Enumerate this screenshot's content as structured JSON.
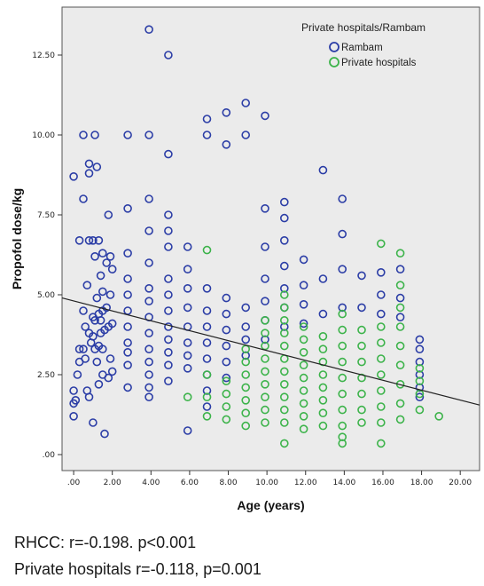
{
  "chart_data": {
    "type": "scatter",
    "xlabel": "Age (years)",
    "ylabel": "Propofol dose/kg",
    "xlim": [
      -0.6,
      21.0
    ],
    "ylim": [
      -0.5,
      14.0
    ],
    "x_ticks": [
      0,
      2,
      4,
      6,
      8,
      10,
      12,
      14,
      16,
      18,
      20
    ],
    "x_tick_labels": [
      ".00",
      "2.00",
      "4.00",
      "6.00",
      "8.00",
      "10.00",
      "12.00",
      "14.00",
      "16.00",
      "18.00",
      "20.00"
    ],
    "y_ticks": [
      0,
      2.5,
      5,
      7.5,
      10,
      12.5
    ],
    "y_tick_labels": [
      ".00",
      "2.50",
      "5.00",
      "7.50",
      "10.00",
      "12.50"
    ],
    "grid": false,
    "plot_background": "#ebebeb",
    "legend": {
      "title": "Private hospitals/Rambam",
      "placement": "top-right"
    },
    "fit_line": {
      "x": [
        -0.6,
        21.0
      ],
      "y": [
        4.9,
        1.55
      ],
      "color": "#222222"
    },
    "series": [
      {
        "name": "Rambam",
        "color": "#2b3da6",
        "points": [
          [
            0,
            8.7
          ],
          [
            0,
            2.0
          ],
          [
            0,
            1.6
          ],
          [
            0,
            1.2
          ],
          [
            0.1,
            1.7
          ],
          [
            0.2,
            2.5
          ],
          [
            0.3,
            6.7
          ],
          [
            0.3,
            3.3
          ],
          [
            0.3,
            2.9
          ],
          [
            0.5,
            10.0
          ],
          [
            0.5,
            8.0
          ],
          [
            0.5,
            4.5
          ],
          [
            0.5,
            3.3
          ],
          [
            0.6,
            4.0
          ],
          [
            0.6,
            3.0
          ],
          [
            0.7,
            5.3
          ],
          [
            0.7,
            2.0
          ],
          [
            0.8,
            9.1
          ],
          [
            0.8,
            8.8
          ],
          [
            0.8,
            6.7
          ],
          [
            0.8,
            3.8
          ],
          [
            0.8,
            1.8
          ],
          [
            0.9,
            3.5
          ],
          [
            1.0,
            6.7
          ],
          [
            1.0,
            4.3
          ],
          [
            1.0,
            3.7
          ],
          [
            1.0,
            1.0
          ],
          [
            1.1,
            10.0
          ],
          [
            1.1,
            6.2
          ],
          [
            1.1,
            4.2
          ],
          [
            1.1,
            3.3
          ],
          [
            1.2,
            9.0
          ],
          [
            1.2,
            4.9
          ],
          [
            1.2,
            2.9
          ],
          [
            1.3,
            6.7
          ],
          [
            1.3,
            4.4
          ],
          [
            1.3,
            3.4
          ],
          [
            1.3,
            2.2
          ],
          [
            1.4,
            5.6
          ],
          [
            1.4,
            4.2
          ],
          [
            1.4,
            3.8
          ],
          [
            1.5,
            6.3
          ],
          [
            1.5,
            5.1
          ],
          [
            1.5,
            4.5
          ],
          [
            1.5,
            3.3
          ],
          [
            1.5,
            2.5
          ],
          [
            1.6,
            3.9
          ],
          [
            1.6,
            0.65
          ],
          [
            1.7,
            6.0
          ],
          [
            1.7,
            4.6
          ],
          [
            1.8,
            7.5
          ],
          [
            1.8,
            4.0
          ],
          [
            1.8,
            2.4
          ],
          [
            1.9,
            6.2
          ],
          [
            1.9,
            5.0
          ],
          [
            1.9,
            3.0
          ],
          [
            2.0,
            5.8
          ],
          [
            2.0,
            4.1
          ],
          [
            2.0,
            2.6
          ],
          [
            2.8,
            10.0
          ],
          [
            2.8,
            7.7
          ],
          [
            2.8,
            6.3
          ],
          [
            2.8,
            5.5
          ],
          [
            2.8,
            5.0
          ],
          [
            2.8,
            4.5
          ],
          [
            2.8,
            4.0
          ],
          [
            2.8,
            3.5
          ],
          [
            2.8,
            3.2
          ],
          [
            2.8,
            2.8
          ],
          [
            2.8,
            2.1
          ],
          [
            3.9,
            13.3
          ],
          [
            3.9,
            10.0
          ],
          [
            3.9,
            8.0
          ],
          [
            3.9,
            7.0
          ],
          [
            3.9,
            6.0
          ],
          [
            3.9,
            5.2
          ],
          [
            3.9,
            4.8
          ],
          [
            3.9,
            4.3
          ],
          [
            3.9,
            3.8
          ],
          [
            3.9,
            3.3
          ],
          [
            3.9,
            2.9
          ],
          [
            3.9,
            2.5
          ],
          [
            3.9,
            2.1
          ],
          [
            3.9,
            1.8
          ],
          [
            4.9,
            12.5
          ],
          [
            4.9,
            9.4
          ],
          [
            4.9,
            7.5
          ],
          [
            4.9,
            7.0
          ],
          [
            4.9,
            6.5
          ],
          [
            4.9,
            5.5
          ],
          [
            4.9,
            5.0
          ],
          [
            4.9,
            4.5
          ],
          [
            4.9,
            4.0
          ],
          [
            4.9,
            3.6
          ],
          [
            4.9,
            3.2
          ],
          [
            4.9,
            2.8
          ],
          [
            4.9,
            2.3
          ],
          [
            5.9,
            6.5
          ],
          [
            5.9,
            5.8
          ],
          [
            5.9,
            5.2
          ],
          [
            5.9,
            4.6
          ],
          [
            5.9,
            4.0
          ],
          [
            5.9,
            3.5
          ],
          [
            5.9,
            3.1
          ],
          [
            5.9,
            2.7
          ],
          [
            5.9,
            0.75
          ],
          [
            6.9,
            10.5
          ],
          [
            6.9,
            10.0
          ],
          [
            6.9,
            5.2
          ],
          [
            6.9,
            4.5
          ],
          [
            6.9,
            4.0
          ],
          [
            6.9,
            3.5
          ],
          [
            6.9,
            3.0
          ],
          [
            6.9,
            2.5
          ],
          [
            6.9,
            2.0
          ],
          [
            6.9,
            1.5
          ],
          [
            7.9,
            10.7
          ],
          [
            7.9,
            9.7
          ],
          [
            7.9,
            4.9
          ],
          [
            7.9,
            4.4
          ],
          [
            7.9,
            3.9
          ],
          [
            7.9,
            3.4
          ],
          [
            7.9,
            2.9
          ],
          [
            7.9,
            2.4
          ],
          [
            8.9,
            11.0
          ],
          [
            8.9,
            10.0
          ],
          [
            8.9,
            4.6
          ],
          [
            8.9,
            4.0
          ],
          [
            8.9,
            3.6
          ],
          [
            8.9,
            3.1
          ],
          [
            9.9,
            10.6
          ],
          [
            9.9,
            7.7
          ],
          [
            9.9,
            6.5
          ],
          [
            9.9,
            5.5
          ],
          [
            9.9,
            4.8
          ],
          [
            9.9,
            4.2
          ],
          [
            9.9,
            3.6
          ],
          [
            10.9,
            7.9
          ],
          [
            10.9,
            7.4
          ],
          [
            10.9,
            6.7
          ],
          [
            10.9,
            5.9
          ],
          [
            10.9,
            5.2
          ],
          [
            10.9,
            4.6
          ],
          [
            10.9,
            4.0
          ],
          [
            11.9,
            6.1
          ],
          [
            11.9,
            5.3
          ],
          [
            11.9,
            4.7
          ],
          [
            11.9,
            4.1
          ],
          [
            12.9,
            8.9
          ],
          [
            12.9,
            5.5
          ],
          [
            12.9,
            4.4
          ],
          [
            13.9,
            8.0
          ],
          [
            13.9,
            6.9
          ],
          [
            13.9,
            5.8
          ],
          [
            13.9,
            4.6
          ],
          [
            14.9,
            5.6
          ],
          [
            14.9,
            4.6
          ],
          [
            15.9,
            5.7
          ],
          [
            15.9,
            5.0
          ],
          [
            15.9,
            4.4
          ],
          [
            16.9,
            5.8
          ],
          [
            16.9,
            4.9
          ],
          [
            16.9,
            4.3
          ],
          [
            17.9,
            3.6
          ],
          [
            17.9,
            3.3
          ],
          [
            17.9,
            2.9
          ],
          [
            17.9,
            2.5
          ],
          [
            17.9,
            2.1
          ],
          [
            17.9,
            1.8
          ]
        ]
      },
      {
        "name": "Private hospitals",
        "color": "#3cb34a",
        "points": [
          [
            5.9,
            1.8
          ],
          [
            6.9,
            6.4
          ],
          [
            6.9,
            2.5
          ],
          [
            6.9,
            1.8
          ],
          [
            6.9,
            1.2
          ],
          [
            7.9,
            2.3
          ],
          [
            7.9,
            1.9
          ],
          [
            7.9,
            1.5
          ],
          [
            7.9,
            1.1
          ],
          [
            8.9,
            3.3
          ],
          [
            8.9,
            2.9
          ],
          [
            8.9,
            2.5
          ],
          [
            8.9,
            2.1
          ],
          [
            8.9,
            1.7
          ],
          [
            8.9,
            1.3
          ],
          [
            8.9,
            0.9
          ],
          [
            9.9,
            4.2
          ],
          [
            9.9,
            3.8
          ],
          [
            9.9,
            3.4
          ],
          [
            9.9,
            3.0
          ],
          [
            9.9,
            2.6
          ],
          [
            9.9,
            2.2
          ],
          [
            9.9,
            1.8
          ],
          [
            9.9,
            1.4
          ],
          [
            9.9,
            1.0
          ],
          [
            10.9,
            5.0
          ],
          [
            10.9,
            4.6
          ],
          [
            10.9,
            4.2
          ],
          [
            10.9,
            3.8
          ],
          [
            10.9,
            3.4
          ],
          [
            10.9,
            3.0
          ],
          [
            10.9,
            2.6
          ],
          [
            10.9,
            2.2
          ],
          [
            10.9,
            1.8
          ],
          [
            10.9,
            1.4
          ],
          [
            10.9,
            1.0
          ],
          [
            10.9,
            0.35
          ],
          [
            11.9,
            4.0
          ],
          [
            11.9,
            3.6
          ],
          [
            11.9,
            3.2
          ],
          [
            11.9,
            2.8
          ],
          [
            11.9,
            2.4
          ],
          [
            11.9,
            2.0
          ],
          [
            11.9,
            1.6
          ],
          [
            11.9,
            1.2
          ],
          [
            11.9,
            0.8
          ],
          [
            12.9,
            3.7
          ],
          [
            12.9,
            3.3
          ],
          [
            12.9,
            2.9
          ],
          [
            12.9,
            2.5
          ],
          [
            12.9,
            2.1
          ],
          [
            12.9,
            1.7
          ],
          [
            12.9,
            1.3
          ],
          [
            12.9,
            0.9
          ],
          [
            13.9,
            4.4
          ],
          [
            13.9,
            3.9
          ],
          [
            13.9,
            3.4
          ],
          [
            13.9,
            2.9
          ],
          [
            13.9,
            2.4
          ],
          [
            13.9,
            1.9
          ],
          [
            13.9,
            1.4
          ],
          [
            13.9,
            0.9
          ],
          [
            13.9,
            0.55
          ],
          [
            13.9,
            0.35
          ],
          [
            14.9,
            3.9
          ],
          [
            14.9,
            3.4
          ],
          [
            14.9,
            2.9
          ],
          [
            14.9,
            2.4
          ],
          [
            14.9,
            1.9
          ],
          [
            14.9,
            1.4
          ],
          [
            14.9,
            1.0
          ],
          [
            15.9,
            6.6
          ],
          [
            15.9,
            4.0
          ],
          [
            15.9,
            3.5
          ],
          [
            15.9,
            3.0
          ],
          [
            15.9,
            2.5
          ],
          [
            15.9,
            2.0
          ],
          [
            15.9,
            1.5
          ],
          [
            15.9,
            1.0
          ],
          [
            15.9,
            0.35
          ],
          [
            16.9,
            6.3
          ],
          [
            16.9,
            5.3
          ],
          [
            16.9,
            4.6
          ],
          [
            16.9,
            4.0
          ],
          [
            16.9,
            3.4
          ],
          [
            16.9,
            2.8
          ],
          [
            16.9,
            2.2
          ],
          [
            16.9,
            1.6
          ],
          [
            16.9,
            1.1
          ],
          [
            17.9,
            2.7
          ],
          [
            17.9,
            2.3
          ],
          [
            17.9,
            1.9
          ],
          [
            17.9,
            1.4
          ],
          [
            18.9,
            1.2
          ]
        ]
      }
    ]
  },
  "captions": {
    "line1": "RHCC: r=-0.198. p<0.001",
    "line2": "Private hospitals r=-0.118, p=0.001"
  }
}
